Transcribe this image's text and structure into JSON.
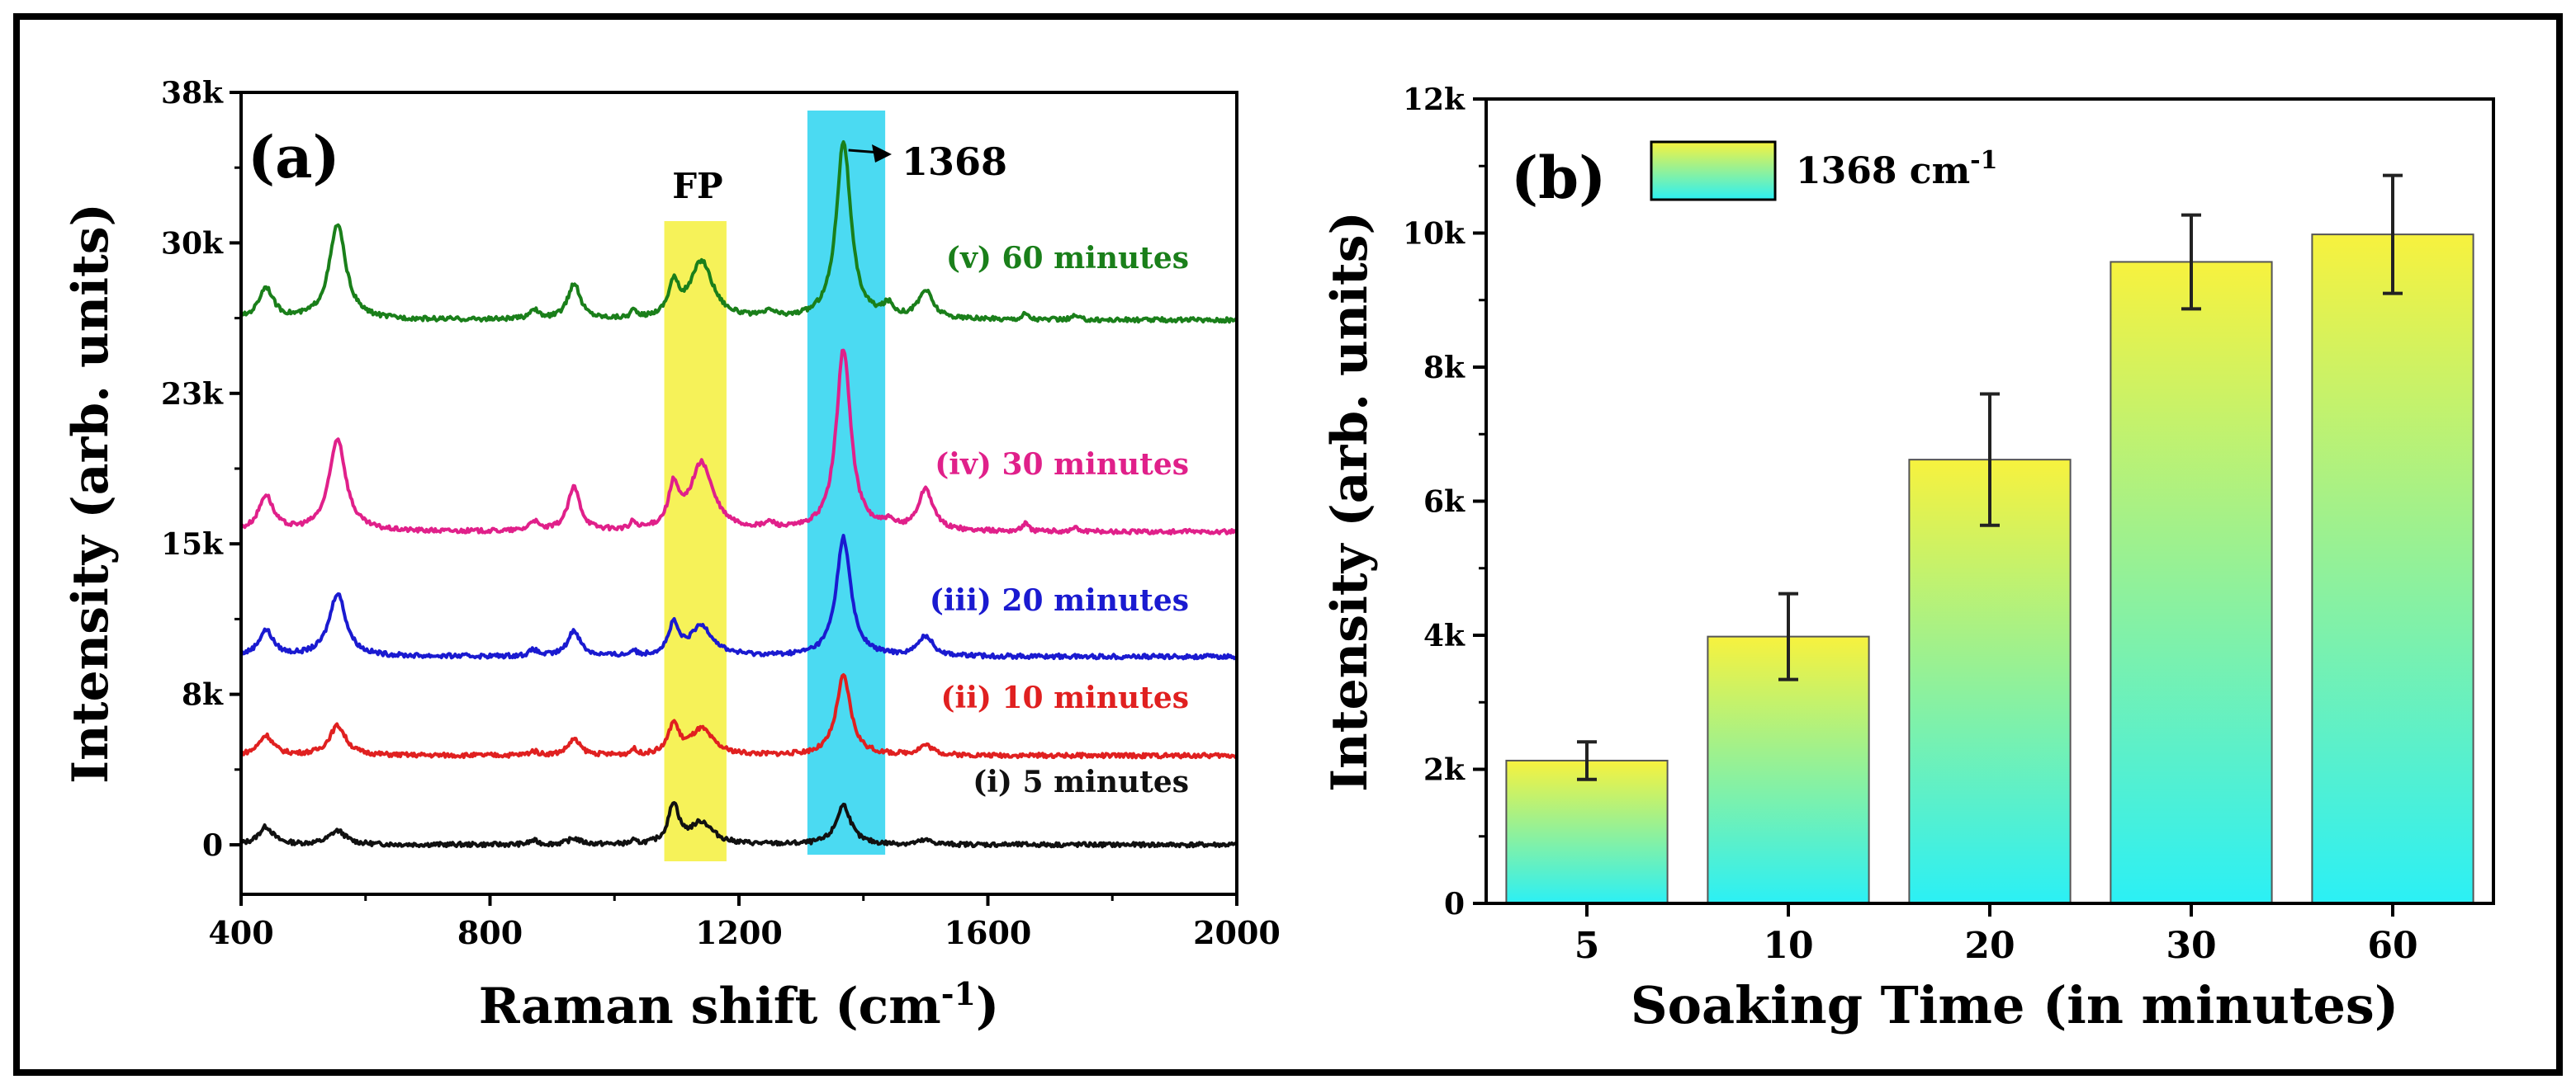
{
  "chart_data": [
    {
      "type": "line",
      "panel_label": "(a)",
      "xlabel": "Raman shift (cm",
      "xlabel_sup": "-1",
      "xlabel_close": ")",
      "ylabel": "Intensity (arb. units)",
      "xlim": [
        400,
        2000
      ],
      "ylim": [
        -2500,
        38000
      ],
      "xticks": [
        400,
        800,
        1200,
        1600,
        2000
      ],
      "xtick_labels": [
        "400",
        "800",
        "1200",
        "1600",
        "2000"
      ],
      "yticks": [
        0,
        7600,
        15200,
        22800,
        30400,
        38000
      ],
      "ytick_labels": [
        "0",
        "8k",
        "15k",
        "23k",
        "30k",
        "38k"
      ],
      "highlight_regions": [
        {
          "name": "FP",
          "label": "FP",
          "x_range": [
            1080,
            1180
          ],
          "color": "#f5f03c"
        },
        {
          "name": "1368",
          "label": "",
          "x_range": [
            1310,
            1435
          ],
          "color": "#2bd4f0"
        }
      ],
      "annotation": {
        "text": "1368",
        "x": 1368
      },
      "peaks_cm": [
        440,
        555,
        870,
        935,
        1030,
        1095,
        1140,
        1250,
        1368,
        1440,
        1500,
        1660,
        1740
      ],
      "series": [
        {
          "name": "(i) 5 minutes",
          "label": "(i) 5 minutes",
          "color": "#111111",
          "baseline": 0,
          "peak_heights": [
            900,
            700,
            200,
            300,
            150,
            2000,
            1100,
            0,
            2000,
            0,
            200,
            0,
            0
          ]
        },
        {
          "name": "(ii) 10 minutes",
          "label": "(ii) 10 minutes",
          "color": "#e02020",
          "baseline": 4500,
          "peak_heights": [
            1000,
            1500,
            200,
            800,
            300,
            1500,
            1300,
            0,
            4000,
            0,
            500,
            0,
            0
          ]
        },
        {
          "name": "(iii) 20 minutes",
          "label": "(iii) 20 minutes",
          "color": "#1a1ad0",
          "baseline": 9500,
          "peak_heights": [
            1300,
            3200,
            300,
            1300,
            300,
            1500,
            1500,
            0,
            6000,
            0,
            1000,
            0,
            0
          ]
        },
        {
          "name": "(iv) 30 minutes",
          "label": "(iv) 30 minutes",
          "color": "#e0208a",
          "baseline": 15800,
          "peak_heights": [
            1800,
            4700,
            500,
            2200,
            400,
            2000,
            3400,
            300,
            9200,
            300,
            2100,
            400,
            200
          ]
        },
        {
          "name": "(v) 60 minutes",
          "label": "(v) 60 minutes",
          "color": "#1a7f1a",
          "baseline": 26500,
          "peak_heights": [
            1600,
            4800,
            500,
            1800,
            400,
            1600,
            2900,
            300,
            9000,
            600,
            1400,
            300,
            200
          ]
        }
      ]
    },
    {
      "type": "bar",
      "panel_label": "(b)",
      "legend_label": "1368 cm",
      "legend_sup": "-1",
      "xlabel": "Soaking Time (in minutes)",
      "ylabel": "Intensity (arb. units)",
      "categories": [
        "5",
        "10",
        "20",
        "30",
        "60"
      ],
      "values": [
        2130,
        3980,
        6620,
        9570,
        9980
      ],
      "errors": [
        280,
        640,
        980,
        700,
        880
      ],
      "ylim": [
        0,
        12000
      ],
      "yticks": [
        0,
        2000,
        4000,
        6000,
        8000,
        10000,
        12000
      ],
      "ytick_labels": [
        "0",
        "2k",
        "4k",
        "6k",
        "8k",
        "10k",
        "12k"
      ],
      "bar_gradient": [
        "#f7f23e",
        "#2bf0f5"
      ]
    }
  ]
}
